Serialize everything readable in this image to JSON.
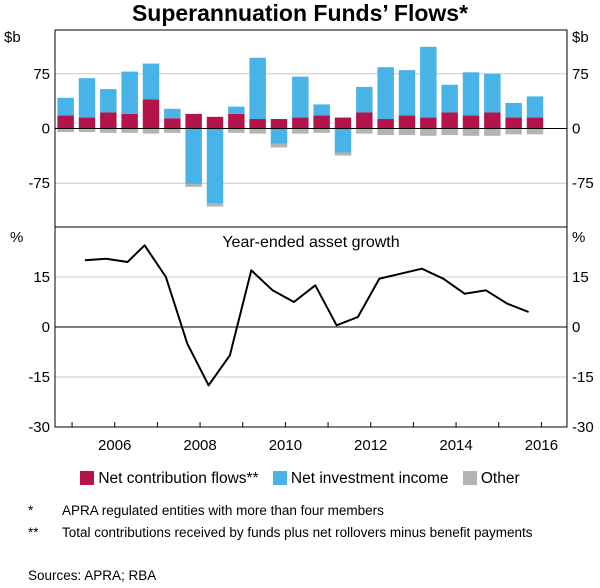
{
  "chart_data": [
    {
      "type": "stacked-bar",
      "title": "Superannuation Funds’ Flows*",
      "unit": "$b",
      "ylim": [
        -135,
        135
      ],
      "yticks": [
        -75,
        0,
        75
      ],
      "ytick_labels": [
        "-75",
        "0",
        "75"
      ],
      "grid": true,
      "x_start": 2004.6,
      "x_step": 0.5,
      "series": [
        {
          "name": "Net contribution flows**",
          "color": "#b5134b",
          "values": [
            18,
            15,
            22,
            20,
            40,
            14,
            20,
            16,
            20,
            13,
            13,
            15,
            18,
            15,
            22,
            13,
            18,
            15,
            22,
            18,
            22,
            15,
            15
          ]
        },
        {
          "name": "Net investment income",
          "color": "#47b3e6",
          "values": [
            24,
            54,
            32,
            58,
            49,
            13,
            -76,
            -103,
            10,
            84,
            -21,
            56,
            15,
            -33,
            35,
            71,
            62,
            97,
            38,
            59,
            53,
            20,
            29
          ]
        },
        {
          "name": "Other",
          "color": "#b3b3b3",
          "values": [
            -5,
            -5,
            -6,
            -6,
            -7,
            -6,
            -4,
            -4,
            -6,
            -7,
            -5,
            -7,
            -6,
            -4,
            -7,
            -9,
            -9,
            -10,
            -9,
            -10,
            -10,
            -8,
            -8
          ]
        }
      ]
    },
    {
      "type": "line",
      "title": "Year-ended asset growth",
      "unit": "%",
      "ylim": [
        -30,
        30
      ],
      "yticks": [
        -30,
        -15,
        0,
        15
      ],
      "ytick_labels": [
        "-30",
        "-15",
        "0",
        "15"
      ],
      "grid": true,
      "x": [
        2005.3,
        2005.8,
        2006.3,
        2006.7,
        2007.2,
        2007.7,
        2008.2,
        2008.7,
        2009.2,
        2009.7,
        2010.2,
        2010.7,
        2011.2,
        2011.7,
        2012.2,
        2012.7,
        2013.2,
        2013.7,
        2014.2,
        2014.7,
        2015.2,
        2015.7
      ],
      "y": [
        20,
        20.5,
        19.5,
        24.5,
        15,
        -5,
        -17.5,
        -8.5,
        17,
        11,
        7.5,
        12.5,
        0.5,
        3,
        14.5,
        16,
        17.5,
        14.5,
        10,
        11,
        7,
        4.5
      ],
      "color": "#000000"
    }
  ],
  "x_axis": {
    "min": 2004.6,
    "max": 2016.6,
    "tick_labels": [
      "2006",
      "2008",
      "2010",
      "2012",
      "2014",
      "2016"
    ],
    "tick_values": [
      2006,
      2008,
      2010,
      2012,
      2014,
      2016
    ]
  },
  "legend": [
    {
      "label": "Net contribution flows**",
      "color": "#b5134b"
    },
    {
      "label": "Net investment income",
      "color": "#47b3e6"
    },
    {
      "label": "Other",
      "color": "#b3b3b3"
    }
  ],
  "notes": [
    {
      "marker": "*",
      "text": "APRA regulated entities with more than four members"
    },
    {
      "marker": "**",
      "text": "Total contributions received by funds plus net rollovers minus benefit payments"
    }
  ],
  "sources": "Sources:   APRA; RBA"
}
